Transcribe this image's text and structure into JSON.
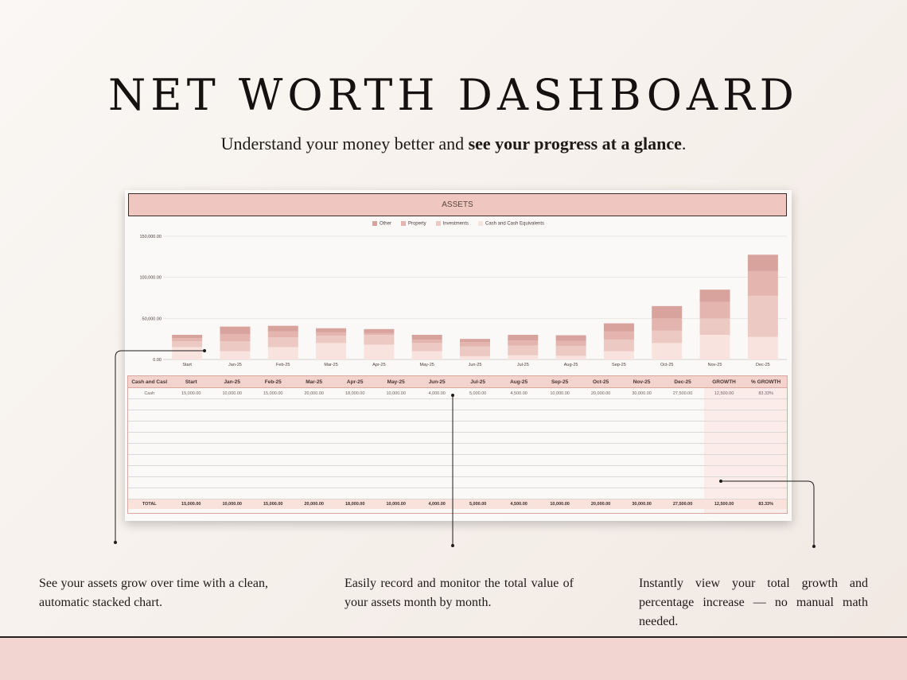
{
  "header": {
    "title": "NET WORTH DASHBOARD",
    "subtitle_plain": "Understand your money better and ",
    "subtitle_bold": "see your progress at a glance",
    "subtitle_end": "."
  },
  "dashboard": {
    "section_title": "ASSETS",
    "legend": [
      {
        "label": "Other",
        "color": "#d9a39d"
      },
      {
        "label": "Property",
        "color": "#e4b5ae"
      },
      {
        "label": "Investments",
        "color": "#edc9c3"
      },
      {
        "label": "Cash and Cash Equivalents",
        "color": "#f8e3df"
      }
    ]
  },
  "chart_data": {
    "type": "bar",
    "stacked": true,
    "categories": [
      "Start",
      "Jan-25",
      "Feb-25",
      "Mar-25",
      "Apr-25",
      "May-25",
      "Jun-25",
      "Jul-25",
      "Aug-25",
      "Sep-25",
      "Oct-25",
      "Nov-25",
      "Dec-25"
    ],
    "series": [
      {
        "name": "Cash and Cash Equivalents",
        "color": "#f8e3df",
        "values": [
          15000,
          10000,
          15000,
          20000,
          18000,
          10000,
          4000,
          5000,
          4500,
          10000,
          20000,
          30000,
          27500
        ]
      },
      {
        "name": "Investments",
        "color": "#edc9c3",
        "values": [
          7000,
          12000,
          12000,
          9000,
          12000,
          10000,
          12000,
          12000,
          12000,
          14000,
          15000,
          20000,
          50000
        ]
      },
      {
        "name": "Property",
        "color": "#e4b5ae",
        "values": [
          4000,
          9000,
          7000,
          4000,
          2000,
          4000,
          5000,
          6000,
          6000,
          10000,
          15000,
          20000,
          30000
        ]
      },
      {
        "name": "Other",
        "color": "#d9a39d",
        "values": [
          4000,
          9000,
          7000,
          5000,
          5000,
          6000,
          4000,
          7000,
          7000,
          10000,
          15000,
          15000,
          20000
        ]
      }
    ],
    "y_ticks": [
      "0.00",
      "50,000.00",
      "100,000.00",
      "150,000.00"
    ],
    "ylim": [
      0,
      150000
    ],
    "grid": true,
    "legend_position": "top-center"
  },
  "table": {
    "headers": [
      "Cash and Casl",
      "Start",
      "Jan-25",
      "Feb-25",
      "Mar-25",
      "Apr-25",
      "May-25",
      "Jun-25",
      "Jul-25",
      "Aug-25",
      "Sep-25",
      "Oct-25",
      "Nov-25",
      "Dec-25",
      "GROWTH",
      "% GROWTH"
    ],
    "rows": [
      [
        "Cash",
        "15,000.00",
        "10,000.00",
        "15,000.00",
        "20,000.00",
        "18,000.00",
        "10,000.00",
        "4,000.00",
        "5,000.00",
        "4,500.00",
        "10,000.00",
        "20,000.00",
        "30,000.00",
        "27,500.00",
        "12,500.00",
        "83.33%"
      ]
    ],
    "empty_rows": 9,
    "total": [
      "TOTAL",
      "15,000.00",
      "10,000.00",
      "15,000.00",
      "20,000.00",
      "18,000.00",
      "10,000.00",
      "4,000.00",
      "5,000.00",
      "4,500.00",
      "10,000.00",
      "20,000.00",
      "30,000.00",
      "27,500.00",
      "12,500.00",
      "83.33%"
    ]
  },
  "captions": {
    "left": "See your assets grow over time with a clean, automatic stacked chart.",
    "middle": "Easily record and monitor the total value of your assets month by month.",
    "right": "Instantly view your total growth and percentage increase — no manual math needed."
  }
}
